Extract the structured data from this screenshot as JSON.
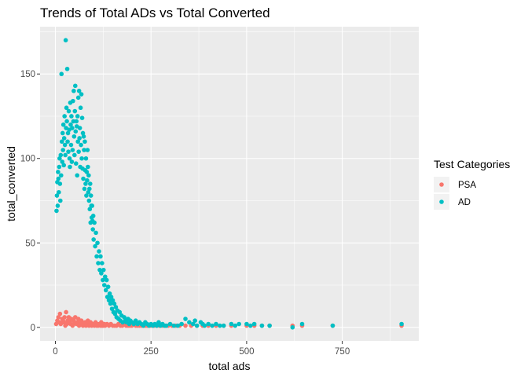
{
  "chart_data": {
    "type": "scatter",
    "title": "Trends of Total ADs vs Total Converted",
    "xlabel": "total ads",
    "ylabel": "total_converted",
    "xlim": [
      -40,
      950
    ],
    "ylim": [
      -8,
      178
    ],
    "x_ticks": [
      0,
      250,
      500,
      750
    ],
    "x_tick_labels": [
      "0",
      "250",
      "500",
      "750"
    ],
    "y_ticks": [
      0,
      50,
      100,
      150
    ],
    "y_tick_labels": [
      "0",
      "50",
      "100",
      "150"
    ],
    "grid": true,
    "legend_title": "Test Categories",
    "legend_position": "right",
    "series": [
      {
        "name": "PSA",
        "color": "#f8766d",
        "points": [
          [
            2,
            2
          ],
          [
            5,
            4
          ],
          [
            8,
            6
          ],
          [
            10,
            3
          ],
          [
            12,
            8
          ],
          [
            14,
            2
          ],
          [
            18,
            5
          ],
          [
            20,
            4
          ],
          [
            22,
            3
          ],
          [
            24,
            6
          ],
          [
            26,
            1
          ],
          [
            28,
            9
          ],
          [
            30,
            2
          ],
          [
            32,
            4
          ],
          [
            35,
            6
          ],
          [
            38,
            3
          ],
          [
            40,
            2
          ],
          [
            42,
            5
          ],
          [
            45,
            1
          ],
          [
            48,
            4
          ],
          [
            50,
            3
          ],
          [
            52,
            6
          ],
          [
            55,
            2
          ],
          [
            58,
            3
          ],
          [
            60,
            5
          ],
          [
            62,
            1
          ],
          [
            65,
            2
          ],
          [
            68,
            4
          ],
          [
            70,
            3
          ],
          [
            72,
            1
          ],
          [
            75,
            2
          ],
          [
            78,
            3
          ],
          [
            80,
            1
          ],
          [
            82,
            2
          ],
          [
            85,
            4
          ],
          [
            88,
            1
          ],
          [
            90,
            2
          ],
          [
            92,
            3
          ],
          [
            95,
            1
          ],
          [
            98,
            2
          ],
          [
            100,
            2
          ],
          [
            102,
            1
          ],
          [
            105,
            3
          ],
          [
            108,
            1
          ],
          [
            110,
            2
          ],
          [
            112,
            1
          ],
          [
            115,
            2
          ],
          [
            118,
            1
          ],
          [
            120,
            3
          ],
          [
            122,
            1
          ],
          [
            125,
            1
          ],
          [
            128,
            2
          ],
          [
            130,
            1
          ],
          [
            135,
            2
          ],
          [
            140,
            1
          ],
          [
            145,
            2
          ],
          [
            150,
            1
          ],
          [
            155,
            1
          ],
          [
            160,
            1
          ],
          [
            165,
            2
          ],
          [
            170,
            1
          ],
          [
            175,
            1
          ],
          [
            180,
            2
          ],
          [
            185,
            1
          ],
          [
            190,
            1
          ],
          [
            195,
            1
          ],
          [
            200,
            1
          ],
          [
            205,
            2
          ],
          [
            210,
            1
          ],
          [
            215,
            1
          ],
          [
            220,
            1
          ],
          [
            225,
            1
          ],
          [
            230,
            1
          ],
          [
            235,
            1
          ],
          [
            240,
            1
          ],
          [
            245,
            1
          ],
          [
            250,
            1
          ],
          [
            258,
            1
          ],
          [
            265,
            1
          ],
          [
            272,
            1
          ],
          [
            280,
            1
          ],
          [
            288,
            1
          ],
          [
            295,
            1
          ],
          [
            305,
            1
          ],
          [
            315,
            1
          ],
          [
            325,
            1
          ],
          [
            340,
            1
          ],
          [
            355,
            1
          ],
          [
            370,
            1
          ],
          [
            385,
            1
          ],
          [
            400,
            1
          ],
          [
            420,
            1
          ],
          [
            440,
            1
          ],
          [
            460,
            1
          ],
          [
            500,
            1
          ],
          [
            520,
            1
          ],
          [
            540,
            1
          ],
          [
            560,
            1
          ],
          [
            620,
            1
          ],
          [
            645,
            1
          ],
          [
            725,
            1
          ],
          [
            905,
            1
          ]
        ]
      },
      {
        "name": "AD",
        "color": "#00bfc4",
        "points": [
          [
            3,
            69
          ],
          [
            4,
            78
          ],
          [
            5,
            86
          ],
          [
            6,
            72
          ],
          [
            7,
            92
          ],
          [
            8,
            88
          ],
          [
            9,
            80
          ],
          [
            10,
            95
          ],
          [
            11,
            100
          ],
          [
            12,
            85
          ],
          [
            13,
            75
          ],
          [
            14,
            102
          ],
          [
            15,
            90
          ],
          [
            16,
            150
          ],
          [
            17,
            110
          ],
          [
            18,
            98
          ],
          [
            19,
            115
          ],
          [
            20,
            105
          ],
          [
            21,
            120
          ],
          [
            22,
            96
          ],
          [
            23,
            112
          ],
          [
            24,
            125
          ],
          [
            25,
            108
          ],
          [
            26,
            102
          ],
          [
            27,
            170
          ],
          [
            28,
            118
          ],
          [
            29,
            130
          ],
          [
            30,
            122
          ],
          [
            31,
            153
          ],
          [
            32,
            110
          ],
          [
            33,
            115
          ],
          [
            34,
            104
          ],
          [
            35,
            128
          ],
          [
            36,
            117
          ],
          [
            37,
            100
          ],
          [
            38,
            95
          ],
          [
            39,
            133
          ],
          [
            40,
            120
          ],
          [
            41,
            108
          ],
          [
            42,
            125
          ],
          [
            43,
            98
          ],
          [
            44,
            118
          ],
          [
            45,
            105
          ],
          [
            46,
            134
          ],
          [
            47,
            122
          ],
          [
            48,
            140
          ],
          [
            49,
            113
          ],
          [
            50,
            102
          ],
          [
            51,
            128
          ],
          [
            52,
            143
          ],
          [
            53,
            116
          ],
          [
            54,
            97
          ],
          [
            55,
            122
          ],
          [
            56,
            119
          ],
          [
            57,
            90
          ],
          [
            58,
            125
          ],
          [
            59,
            110
          ],
          [
            60,
            136
          ],
          [
            61,
            104
          ],
          [
            62,
            140
          ],
          [
            63,
            112
          ],
          [
            64,
            118
          ],
          [
            65,
            95
          ],
          [
            66,
            130
          ],
          [
            67,
            108
          ],
          [
            68,
            138
          ],
          [
            69,
            100
          ],
          [
            70,
            124
          ],
          [
            71,
            94
          ],
          [
            72,
            115
          ],
          [
            73,
            88
          ],
          [
            74,
            113
          ],
          [
            75,
            105
          ],
          [
            76,
            82
          ],
          [
            77,
            110
          ],
          [
            78,
            93
          ],
          [
            79,
            85
          ],
          [
            80,
            100
          ],
          [
            81,
            78
          ],
          [
            82,
            92
          ],
          [
            83,
            87
          ],
          [
            84,
            105
          ],
          [
            85,
            95
          ],
          [
            86,
            80
          ],
          [
            87,
            90
          ],
          [
            88,
            75
          ],
          [
            89,
            82
          ],
          [
            90,
            70
          ],
          [
            91,
            85
          ],
          [
            92,
            62
          ],
          [
            93,
            78
          ],
          [
            94,
            72
          ],
          [
            95,
            65
          ],
          [
            96,
            72
          ],
          [
            97,
            63
          ],
          [
            98,
            58
          ],
          [
            99,
            66
          ],
          [
            100,
            52
          ],
          [
            102,
            62
          ],
          [
            104,
            48
          ],
          [
            106,
            56
          ],
          [
            108,
            42
          ],
          [
            110,
            50
          ],
          [
            112,
            38
          ],
          [
            114,
            45
          ],
          [
            116,
            34
          ],
          [
            118,
            42
          ],
          [
            120,
            32
          ],
          [
            122,
            38
          ],
          [
            124,
            28
          ],
          [
            126,
            34
          ],
          [
            128,
            25
          ],
          [
            130,
            30
          ],
          [
            132,
            22
          ],
          [
            134,
            28
          ],
          [
            136,
            18
          ],
          [
            138,
            24
          ],
          [
            140,
            16
          ],
          [
            142,
            20
          ],
          [
            144,
            14
          ],
          [
            146,
            18
          ],
          [
            148,
            11
          ],
          [
            150,
            16
          ],
          [
            152,
            9
          ],
          [
            154,
            14
          ],
          [
            156,
            8
          ],
          [
            158,
            12
          ],
          [
            160,
            6
          ],
          [
            162,
            10
          ],
          [
            165,
            5
          ],
          [
            168,
            9
          ],
          [
            170,
            4
          ],
          [
            173,
            7
          ],
          [
            176,
            3
          ],
          [
            180,
            6
          ],
          [
            183,
            4
          ],
          [
            186,
            3
          ],
          [
            190,
            5
          ],
          [
            193,
            2
          ],
          [
            196,
            4
          ],
          [
            200,
            3
          ],
          [
            205,
            2
          ],
          [
            210,
            4
          ],
          [
            215,
            2
          ],
          [
            220,
            3
          ],
          [
            225,
            2
          ],
          [
            230,
            1
          ],
          [
            235,
            3
          ],
          [
            240,
            2
          ],
          [
            245,
            1
          ],
          [
            250,
            2
          ],
          [
            255,
            1
          ],
          [
            260,
            2
          ],
          [
            265,
            1
          ],
          [
            270,
            3
          ],
          [
            275,
            1
          ],
          [
            280,
            2
          ],
          [
            285,
            1
          ],
          [
            290,
            1
          ],
          [
            300,
            2
          ],
          [
            310,
            1
          ],
          [
            320,
            1
          ],
          [
            330,
            2
          ],
          [
            340,
            5
          ],
          [
            350,
            3
          ],
          [
            360,
            2
          ],
          [
            365,
            4
          ],
          [
            370,
            1
          ],
          [
            380,
            3
          ],
          [
            385,
            2
          ],
          [
            390,
            1
          ],
          [
            400,
            2
          ],
          [
            410,
            1
          ],
          [
            420,
            2
          ],
          [
            430,
            1
          ],
          [
            440,
            1
          ],
          [
            460,
            2
          ],
          [
            470,
            1
          ],
          [
            480,
            2
          ],
          [
            500,
            2
          ],
          [
            510,
            1
          ],
          [
            520,
            2
          ],
          [
            540,
            1
          ],
          [
            560,
            1
          ],
          [
            620,
            0
          ],
          [
            645,
            2
          ],
          [
            725,
            1
          ],
          [
            905,
            2
          ]
        ]
      }
    ]
  }
}
